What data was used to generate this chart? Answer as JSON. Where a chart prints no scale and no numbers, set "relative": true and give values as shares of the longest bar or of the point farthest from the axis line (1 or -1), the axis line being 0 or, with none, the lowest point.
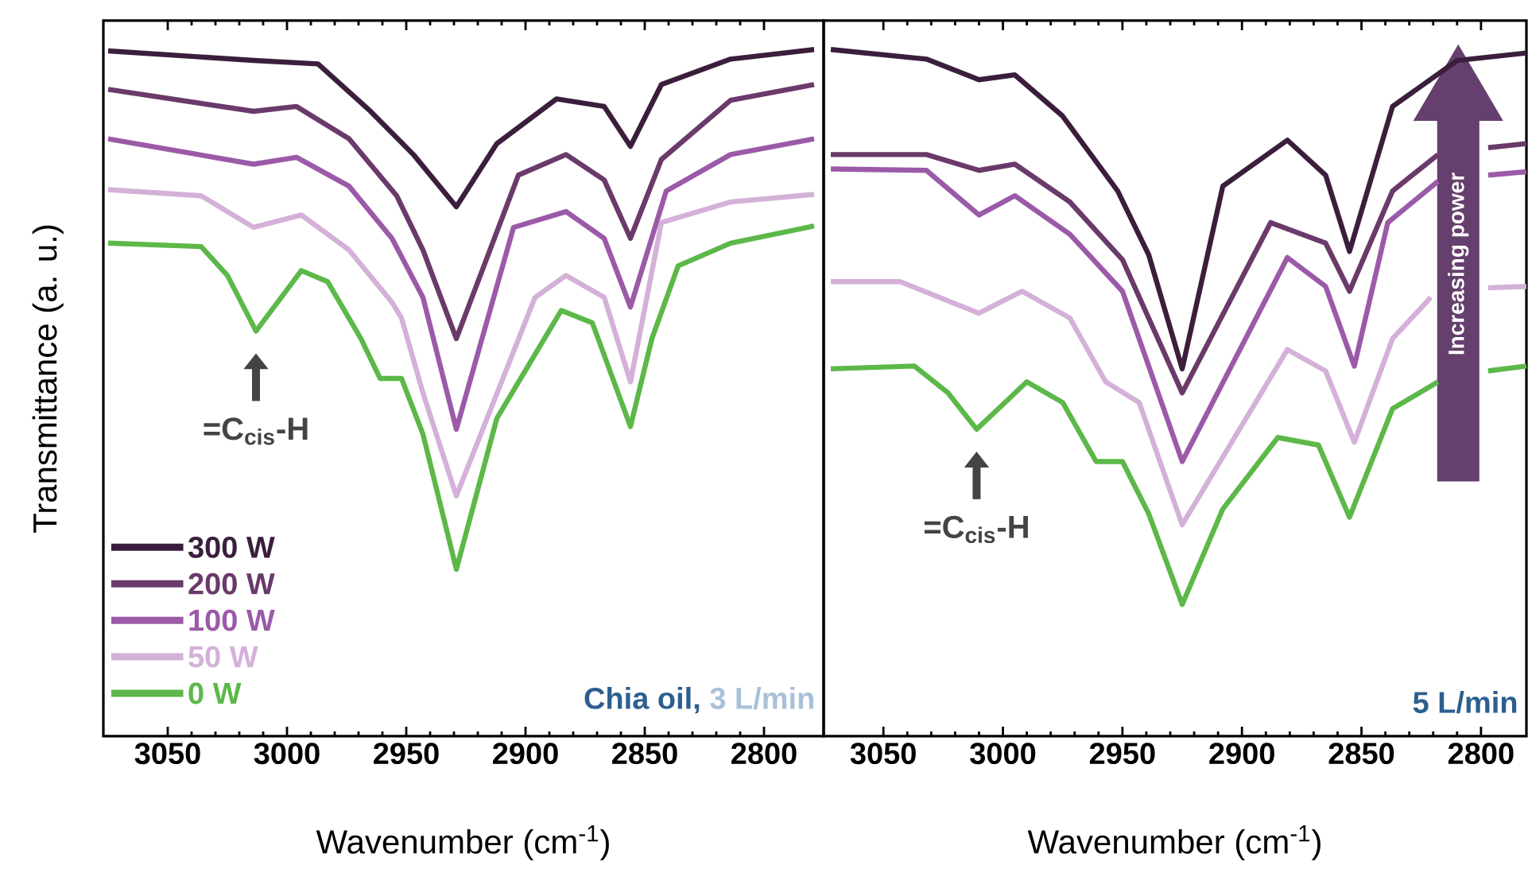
{
  "chart_data": [
    {
      "type": "line",
      "relative": true,
      "xlabel": "Wavenumber (cm$^{-1}$)",
      "ylabel": "Transmittance (a. u.)",
      "xlim": [
        3077,
        2775
      ],
      "xticks": [
        3050,
        3000,
        2950,
        2900,
        2850,
        2800
      ],
      "legend": "bottom left",
      "annotations": [
        {
          "text": "=C$_{cis}$-H",
          "x": 3013,
          "y": 0.59
        },
        "Chia oil,",
        "3 L/min"
      ],
      "series": [
        {
          "name": "300 W",
          "color": "#3b1e3c",
          "x": [
            3075,
            3014,
            2987,
            2965,
            2947,
            2929,
            2912,
            2887,
            2867,
            2856,
            2843,
            2814,
            2779
          ],
          "values": [
            0.998,
            0.984,
            0.979,
            0.91,
            0.847,
            0.771,
            0.863,
            0.928,
            0.917,
            0.859,
            0.949,
            0.986,
            1.0
          ]
        },
        {
          "name": "200 W",
          "color": "#6a3a6a",
          "x": [
            3075,
            3014,
            2996,
            2974,
            2954,
            2943,
            2929,
            2903,
            2883,
            2867,
            2856,
            2843,
            2814,
            2779
          ],
          "values": [
            0.942,
            0.91,
            0.917,
            0.87,
            0.787,
            0.708,
            0.579,
            0.817,
            0.847,
            0.81,
            0.725,
            0.84,
            0.926,
            0.949
          ]
        },
        {
          "name": "100 W",
          "color": "#9b5aa8",
          "x": [
            3075,
            3014,
            2996,
            2974,
            2956,
            2943,
            2929,
            2905,
            2883,
            2867,
            2856,
            2841,
            2814,
            2779
          ],
          "values": [
            0.87,
            0.833,
            0.843,
            0.801,
            0.725,
            0.639,
            0.447,
            0.741,
            0.764,
            0.725,
            0.625,
            0.794,
            0.847,
            0.87
          ]
        },
        {
          "name": "50 W",
          "color": "#d4b1d8",
          "x": [
            3075,
            3036,
            3014,
            2994,
            2974,
            2956,
            2952,
            2943,
            2929,
            2896,
            2883,
            2867,
            2856,
            2843,
            2814,
            2779
          ],
          "values": [
            0.796,
            0.787,
            0.741,
            0.759,
            0.708,
            0.632,
            0.609,
            0.5,
            0.35,
            0.639,
            0.671,
            0.639,
            0.516,
            0.748,
            0.778,
            0.789
          ]
        },
        {
          "name": "0 W",
          "color": "#5cb848",
          "x": [
            3075,
            3036,
            3025,
            3013,
            2994,
            2983,
            2969,
            2961,
            2952,
            2943,
            2929,
            2912,
            2885,
            2872,
            2856,
            2847,
            2836,
            2814,
            2779
          ],
          "values": [
            0.718,
            0.713,
            0.671,
            0.59,
            0.678,
            0.662,
            0.579,
            0.521,
            0.521,
            0.44,
            0.243,
            0.463,
            0.62,
            0.602,
            0.451,
            0.579,
            0.685,
            0.718,
            0.743
          ]
        }
      ]
    },
    {
      "type": "line",
      "relative": true,
      "xlabel": "Wavenumber (cm$^{-1}$)",
      "xlim": [
        3075,
        2781
      ],
      "xticks": [
        3050,
        3000,
        2950,
        2900,
        2850,
        2800
      ],
      "annotations": [
        {
          "text": "=C$_{cis}$-H",
          "x": 3011,
          "y": 0.447
        },
        "5 L/min",
        "Increasing power"
      ],
      "series": [
        {
          "color": "#3b1e3c",
          "x": [
            3072,
            3032,
            3010,
            2995,
            2975,
            2952,
            2939,
            2925,
            2908,
            2881,
            2865,
            2855,
            2837,
            2810,
            2781
          ],
          "values": [
            1.0,
            0.986,
            0.956,
            0.963,
            0.903,
            0.794,
            0.701,
            0.535,
            0.801,
            0.868,
            0.817,
            0.706,
            0.917,
            0.984,
            0.995
          ]
        },
        {
          "color": "#6a3a6a",
          "x": [
            3072,
            3032,
            3010,
            2995,
            2972,
            2950,
            2925,
            2888,
            2865,
            2855,
            2837,
            2818,
            2810,
            2797,
            2781
          ],
          "values": [
            0.847,
            0.847,
            0.824,
            0.833,
            0.778,
            0.694,
            0.5,
            0.748,
            0.718,
            0.648,
            0.794,
            0.847,
            null,
            0.857,
            0.863
          ]
        },
        {
          "color": "#9b5aa8",
          "x": [
            3072,
            3032,
            3010,
            2995,
            2972,
            2950,
            2925,
            2881,
            2865,
            2853,
            2839,
            2818,
            2810,
            2797,
            2781
          ],
          "values": [
            0.826,
            0.824,
            0.759,
            0.787,
            0.731,
            0.648,
            0.4,
            0.697,
            0.655,
            0.539,
            0.748,
            0.808,
            null,
            0.817,
            0.822
          ]
        },
        {
          "color": "#d4b1d8",
          "x": [
            3072,
            3043,
            3010,
            2992,
            2972,
            2957,
            2943,
            2925,
            2881,
            2865,
            2853,
            2837,
            2821,
            2808,
            2797,
            2781
          ],
          "values": [
            0.662,
            0.662,
            0.616,
            0.648,
            0.609,
            0.516,
            0.486,
            0.308,
            0.563,
            0.532,
            0.428,
            0.579,
            0.639,
            null,
            0.653,
            0.655
          ]
        },
        {
          "color": "#5cb848",
          "x": [
            3072,
            3037,
            3023,
            3011,
            2990,
            2975,
            2961,
            2950,
            2939,
            2925,
            2908,
            2885,
            2868,
            2855,
            2837,
            2818,
            2808,
            2797,
            2781
          ],
          "values": [
            0.535,
            0.539,
            0.5,
            0.447,
            0.516,
            0.486,
            0.4,
            0.4,
            0.324,
            0.192,
            0.331,
            0.435,
            0.424,
            0.319,
            0.477,
            0.516,
            null,
            0.532,
            0.539
          ]
        }
      ]
    }
  ]
}
